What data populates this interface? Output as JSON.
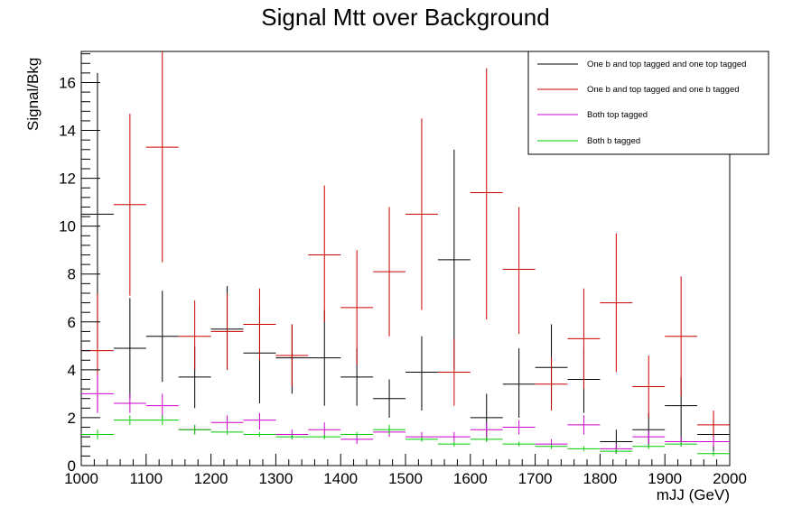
{
  "chart_data": {
    "type": "scatter",
    "title": "Signal Mtt over Background",
    "xlabel": "mJJ (GeV)",
    "ylabel": "Signal/Bkg",
    "xlim": [
      1000,
      2000
    ],
    "ylim": [
      0,
      17.3
    ],
    "x_ticks": [
      1000,
      1100,
      1200,
      1300,
      1400,
      1500,
      1600,
      1700,
      1800,
      1900,
      2000
    ],
    "y_ticks": [
      0,
      2,
      4,
      6,
      8,
      10,
      12,
      14,
      16
    ],
    "bin_width": 50,
    "grid": false,
    "legend_position": "top-right",
    "x": [
      1025,
      1075,
      1125,
      1175,
      1225,
      1275,
      1325,
      1375,
      1425,
      1475,
      1525,
      1575,
      1625,
      1675,
      1725,
      1775,
      1825,
      1875,
      1925,
      1975
    ],
    "series": [
      {
        "name": "One b and top tagged and one top tagged",
        "color": "#000000",
        "values": [
          10.5,
          4.9,
          5.4,
          3.7,
          5.7,
          4.7,
          4.5,
          4.5,
          3.7,
          2.8,
          3.9,
          8.6,
          2.0,
          3.4,
          4.1,
          3.6,
          1.0,
          1.5,
          2.5,
          1.3
        ],
        "low": [
          4.9,
          2.8,
          3.5,
          2.4,
          4.0,
          2.6,
          3.0,
          2.5,
          2.5,
          2.0,
          2.3,
          4.0,
          1.0,
          2.0,
          2.5,
          2.2,
          0.5,
          0.8,
          1.0,
          0.6
        ],
        "high": [
          16.4,
          7.0,
          7.3,
          5.0,
          7.5,
          6.7,
          5.9,
          6.5,
          4.9,
          3.6,
          5.4,
          13.2,
          3.0,
          4.9,
          5.9,
          4.9,
          1.5,
          2.2,
          3.7,
          2.0
        ]
      },
      {
        "name": "One b and top tagged and one b tagged",
        "color": "#cc0000",
        "values": [
          4.8,
          10.9,
          13.3,
          5.4,
          5.6,
          5.9,
          4.6,
          8.8,
          6.6,
          8.1,
          10.5,
          3.9,
          11.4,
          8.2,
          3.4,
          5.3,
          6.8,
          3.3,
          5.4,
          1.7
        ],
        "low": [
          2.3,
          7.1,
          8.5,
          4.0,
          4.0,
          4.4,
          3.3,
          6.0,
          4.2,
          5.4,
          6.5,
          2.5,
          6.1,
          5.5,
          2.3,
          3.2,
          3.9,
          2.0,
          2.9,
          1.0
        ],
        "high": [
          7.2,
          14.7,
          17.3,
          6.9,
          7.2,
          7.4,
          5.9,
          11.7,
          9.0,
          10.8,
          14.5,
          5.3,
          16.6,
          10.8,
          4.5,
          7.4,
          9.7,
          4.6,
          7.9,
          2.3
        ]
      },
      {
        "name": "Both top tagged",
        "color": "#cc00cc",
        "values": [
          3.0,
          2.6,
          2.5,
          1.5,
          1.8,
          1.9,
          1.3,
          1.5,
          1.1,
          1.4,
          1.2,
          1.2,
          1.5,
          1.6,
          0.9,
          1.7,
          0.7,
          1.2,
          1.0,
          1.0
        ],
        "low": [
          2.2,
          2.2,
          2.0,
          1.3,
          1.5,
          1.5,
          1.1,
          1.2,
          0.9,
          1.2,
          1.0,
          1.0,
          1.2,
          1.3,
          0.7,
          1.3,
          0.5,
          0.9,
          0.8,
          0.8
        ],
        "high": [
          3.8,
          3.0,
          3.0,
          1.7,
          2.1,
          2.2,
          1.5,
          1.8,
          1.3,
          1.6,
          1.4,
          1.4,
          1.8,
          1.9,
          1.1,
          2.1,
          0.9,
          1.5,
          1.2,
          1.2
        ]
      },
      {
        "name": "Both b tagged",
        "color": "#00cc00",
        "values": [
          1.3,
          1.9,
          1.9,
          1.5,
          1.4,
          1.3,
          1.2,
          1.2,
          1.3,
          1.5,
          1.1,
          0.9,
          1.1,
          0.9,
          0.8,
          0.7,
          0.6,
          0.8,
          0.9,
          0.5
        ],
        "low": [
          1.1,
          1.7,
          1.7,
          1.3,
          1.3,
          1.2,
          1.1,
          1.1,
          1.2,
          1.3,
          1.0,
          0.8,
          1.0,
          0.8,
          0.7,
          0.6,
          0.5,
          0.7,
          0.8,
          0.4
        ],
        "high": [
          1.5,
          2.1,
          2.1,
          1.7,
          1.5,
          1.4,
          1.3,
          1.3,
          1.4,
          1.7,
          1.2,
          1.0,
          1.2,
          1.0,
          0.9,
          0.8,
          0.7,
          0.9,
          1.0,
          0.6
        ]
      }
    ]
  }
}
